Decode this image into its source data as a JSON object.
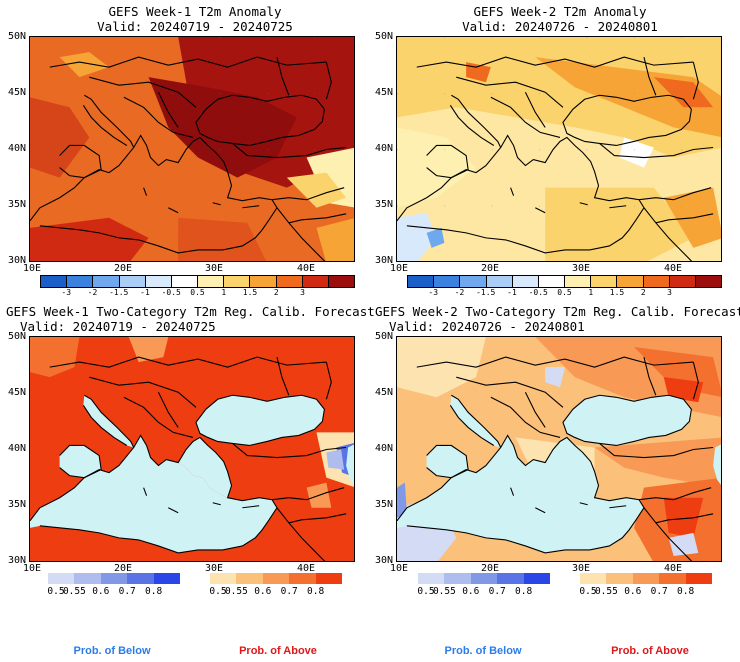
{
  "panels": [
    {
      "title1": "GEFS Week-1 T2m Anomaly",
      "title2": "Valid: 20240719 - 20240725"
    },
    {
      "title1": "GEFS Week-2 T2m Anomaly",
      "title2": "Valid: 20240726 - 20240801"
    },
    {
      "title1": "GEFS Week-1 Two-Category T2m Reg. Calib. Forecast",
      "title2": "Valid: 20240719 - 20240725"
    },
    {
      "title1": "GEFS Week-2 Two-Category T2m Reg. Calib. Forecast",
      "title2": "Valid: 20240726 - 20240801"
    }
  ],
  "lat_labels": [
    "50N",
    "45N",
    "40N",
    "35N",
    "30N"
  ],
  "lon_labels": [
    "10E",
    "20E",
    "30E",
    "40E"
  ],
  "anomaly_colorbar": {
    "ticks": [
      "-3",
      "-2",
      "-1.5",
      "-1",
      "-0.5",
      "0.5",
      "1",
      "1.5",
      "2",
      "3"
    ],
    "colors": [
      "#1a5fc7",
      "#3a82de",
      "#6fa8ec",
      "#a9cdf4",
      "#d8e9fb",
      "#ffffff",
      "#fdf0b0",
      "#fbd36c",
      "#f7a437",
      "#ef6a1f",
      "#d12a12",
      "#9c0e0e"
    ]
  },
  "prob_colorbar": {
    "ticks": [
      "0.5",
      "0.55",
      "0.6",
      "0.7",
      "0.8"
    ],
    "below_colors": [
      "#d4dcf5",
      "#aebcee",
      "#8198e6",
      "#5a74e6",
      "#2a46e6"
    ],
    "above_colors": [
      "#fde3b0",
      "#fbc07a",
      "#f89a55",
      "#f3702f",
      "#ee3d10"
    ]
  },
  "labels": {
    "below": "Prob. of Below",
    "above": "Prob. of Above"
  },
  "colors": {
    "sea": "#cff3f5",
    "below_label": "#2b7ce8",
    "above_label": "#e01818"
  }
}
